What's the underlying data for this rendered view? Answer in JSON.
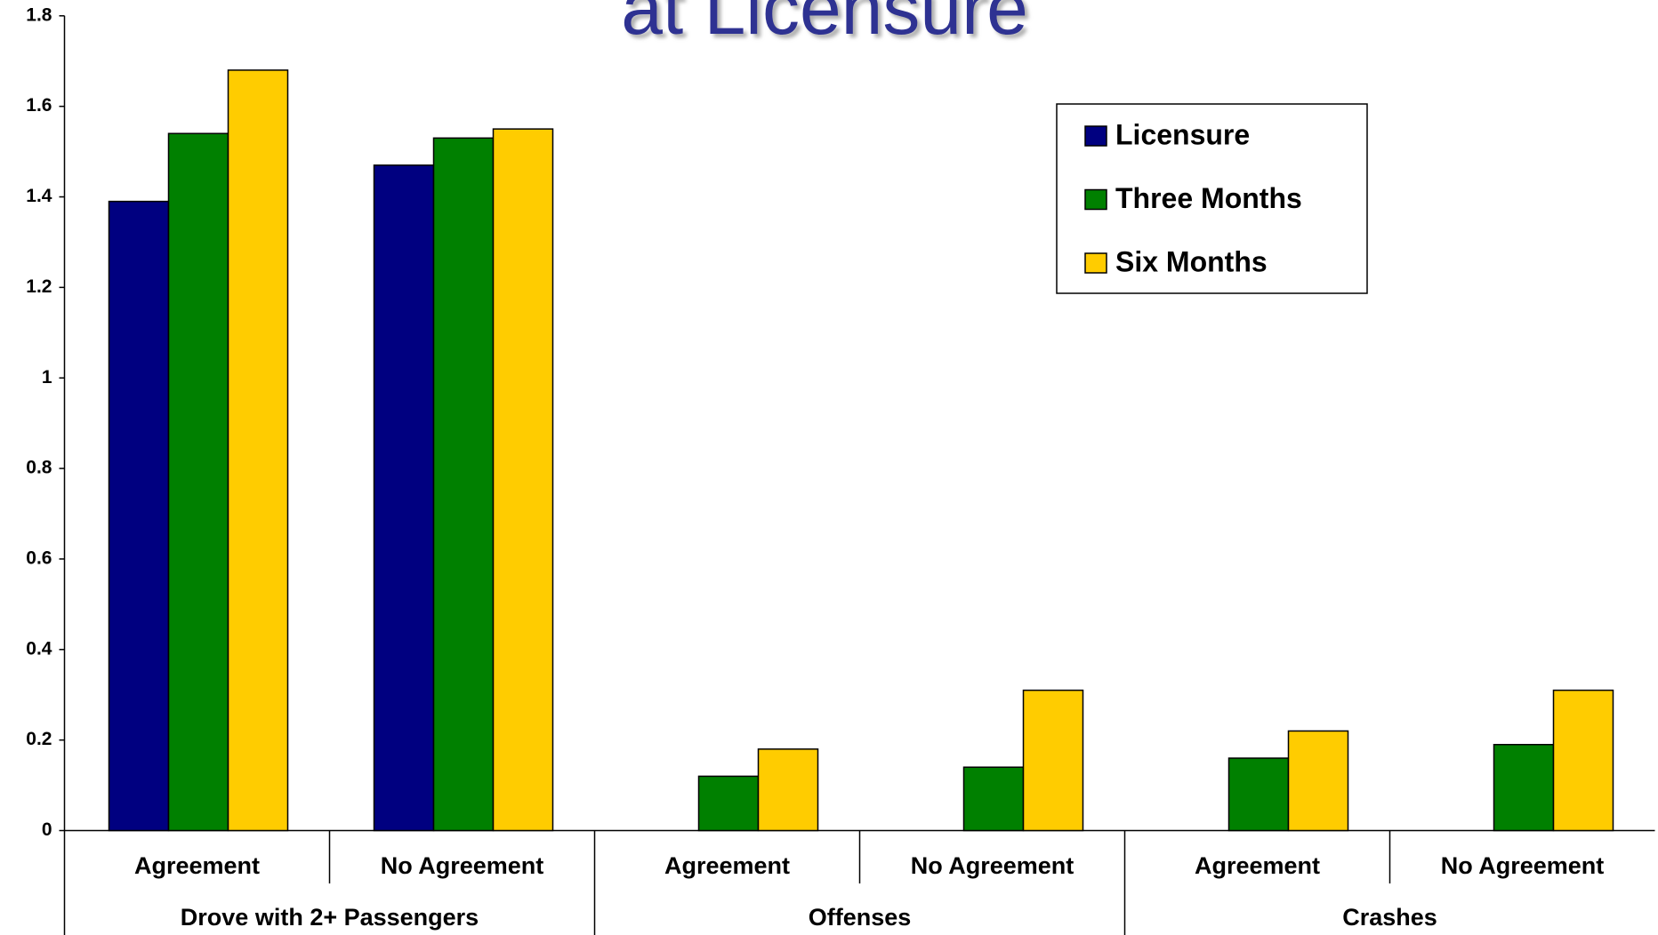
{
  "chart_data": {
    "type": "bar",
    "title": "at Licensure",
    "categories": [
      "Agreement",
      "No Agreement",
      "Agreement",
      "No Agreement",
      "Agreement",
      "No Agreement"
    ],
    "category_groups": [
      "Drove with 2+ Passengers",
      "Offenses",
      "Crashes"
    ],
    "series": [
      {
        "name": "Licensure",
        "color": "#000080",
        "values": [
          1.39,
          1.47,
          null,
          null,
          null,
          null
        ]
      },
      {
        "name": "Three Months",
        "color": "#008000",
        "values": [
          1.54,
          1.53,
          0.12,
          0.14,
          0.16,
          0.19
        ]
      },
      {
        "name": "Six Months",
        "color": "#ffcc00",
        "values": [
          1.68,
          1.55,
          0.18,
          0.31,
          0.22,
          0.31
        ]
      }
    ],
    "ylim": [
      0,
      1.8
    ],
    "yticks": [
      0,
      {
        "value": 0.2,
        "label": "0.2"
      },
      {
        "value": 0.4,
        "label": "0.4"
      },
      {
        "value": 0.6,
        "label": "0.6"
      },
      {
        "value": 0.8,
        "label": "0.8"
      },
      1,
      {
        "value": 1.2,
        "label": "1.2"
      },
      {
        "value": 1.4,
        "label": "1.4"
      },
      {
        "value": 1.6,
        "label": "1.6"
      },
      {
        "value": 1.8,
        "label": "1.8"
      }
    ],
    "grid": false,
    "legend": "upper right"
  }
}
